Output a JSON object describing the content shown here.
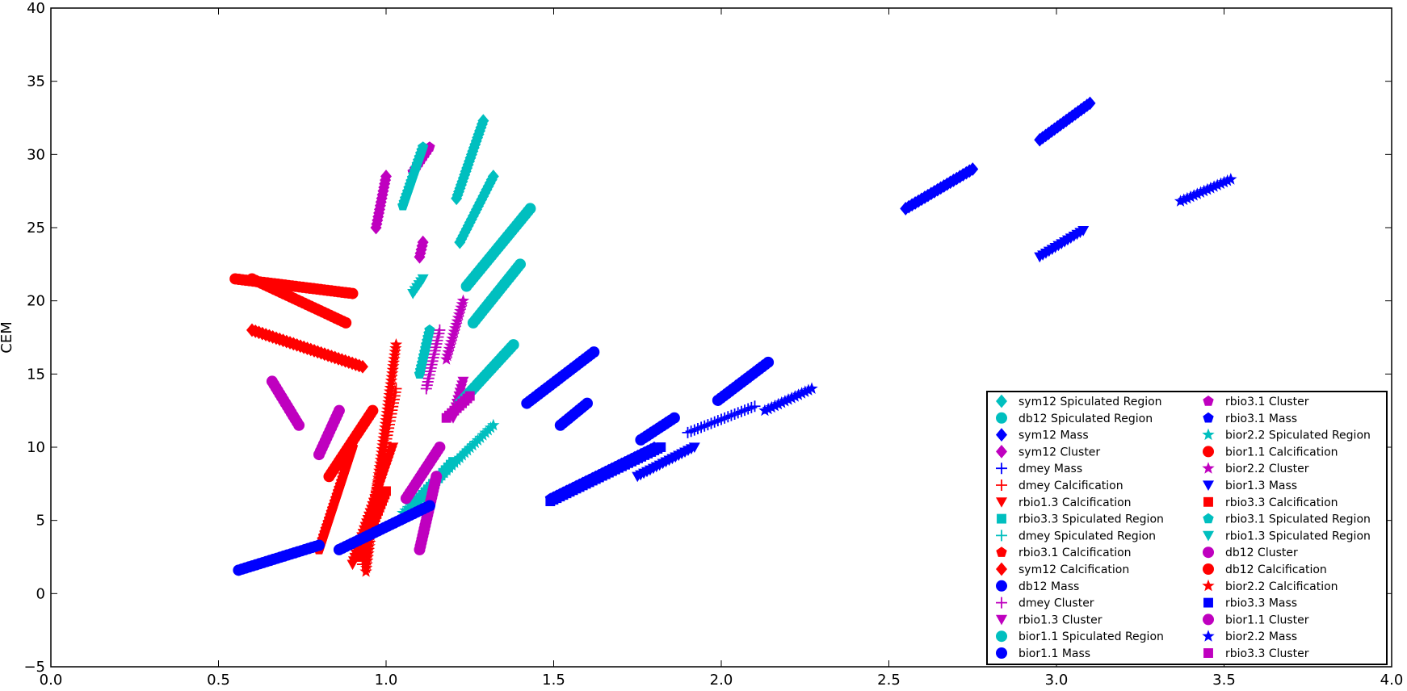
{
  "chart_data": {
    "type": "scatter",
    "title": "",
    "xlabel": "",
    "ylabel": "CEM",
    "xlim": [
      0.0,
      4.0
    ],
    "ylim": [
      -5,
      40
    ],
    "xticks": [
      "0.0",
      "0.5",
      "1.0",
      "1.5",
      "2.0",
      "2.5",
      "3.0",
      "3.5",
      "4.0"
    ],
    "yticks": [
      "−5",
      "0",
      "5",
      "10",
      "15",
      "20",
      "25",
      "30",
      "35",
      "40"
    ],
    "grid": false,
    "legend_position": "lower-right",
    "colors": {
      "cyan": "#00bfbf",
      "blue": "#0000ff",
      "magenta": "#bf00bf",
      "red": "#ff0000"
    },
    "series": [
      {
        "name": "sym12 Spiculated Region",
        "color": "#00bfbf",
        "marker": "diamond",
        "segments": [
          [
            1.21,
            27.0,
            1.29,
            32.3
          ],
          [
            1.22,
            24.0,
            1.32,
            28.5
          ]
        ]
      },
      {
        "name": "db12 Spiculated Region",
        "color": "#00bfbf",
        "marker": "circle",
        "segments": [
          [
            1.24,
            21.0,
            1.43,
            26.3
          ],
          [
            1.26,
            18.5,
            1.4,
            22.5
          ]
        ]
      },
      {
        "name": "sym12 Mass",
        "color": "#0000ff",
        "marker": "diamond",
        "segments": [
          [
            2.55,
            26.3,
            2.75,
            29.0
          ],
          [
            2.95,
            31.0,
            3.1,
            33.5
          ]
        ]
      },
      {
        "name": "sym12 Cluster",
        "color": "#bf00bf",
        "marker": "diamond",
        "segments": [
          [
            0.97,
            25.0,
            1.0,
            28.5
          ],
          [
            1.1,
            23.0,
            1.11,
            24.0
          ]
        ]
      },
      {
        "name": "dmey Mass",
        "color": "#0000ff",
        "marker": "plus",
        "segments": [
          [
            1.9,
            11.0,
            2.1,
            12.8
          ]
        ]
      },
      {
        "name": "dmey Calcification",
        "color": "#ff0000",
        "marker": "plus",
        "segments": [
          [
            0.93,
            2.0,
            1.03,
            14.0
          ]
        ]
      },
      {
        "name": "rbio1.3 Calcification",
        "color": "#ff0000",
        "marker": "triangle-down",
        "segments": [
          [
            0.9,
            2.0,
            1.02,
            10.0
          ]
        ]
      },
      {
        "name": "rbio3.3 Spiculated Region",
        "color": "#00bfbf",
        "marker": "square",
        "segments": [
          [
            1.08,
            6.0,
            1.2,
            9.0
          ]
        ]
      },
      {
        "name": "dmey Spiculated Region",
        "color": "#00bfbf",
        "marker": "plus",
        "segments": [
          [
            1.1,
            6.5,
            1.25,
            10.0
          ]
        ]
      },
      {
        "name": "rbio3.1 Calcification",
        "color": "#ff0000",
        "marker": "pentagon",
        "segments": [
          [
            0.8,
            3.0,
            0.9,
            10.0
          ]
        ]
      },
      {
        "name": "sym12 Calcification",
        "color": "#ff0000",
        "marker": "diamond",
        "segments": [
          [
            0.6,
            18.0,
            0.93,
            15.5
          ]
        ]
      },
      {
        "name": "db12 Mass",
        "color": "#0000ff",
        "marker": "circle",
        "segments": [
          [
            1.42,
            13.0,
            1.62,
            16.5
          ],
          [
            1.52,
            11.5,
            1.6,
            13.0
          ]
        ]
      },
      {
        "name": "dmey Cluster",
        "color": "#bf00bf",
        "marker": "plus",
        "segments": [
          [
            1.12,
            14.0,
            1.16,
            18.0
          ]
        ]
      },
      {
        "name": "rbio1.3 Cluster",
        "color": "#bf00bf",
        "marker": "triangle-down",
        "segments": [
          [
            1.2,
            12.0,
            1.23,
            14.5
          ]
        ]
      },
      {
        "name": "bior1.1 Spiculated Region",
        "color": "#00bfbf",
        "marker": "circle",
        "segments": [
          [
            1.22,
            13.0,
            1.38,
            17.0
          ]
        ]
      },
      {
        "name": "bior1.1 Mass",
        "color": "#0000ff",
        "marker": "circle",
        "segments": [
          [
            1.99,
            13.2,
            2.14,
            15.8
          ],
          [
            1.76,
            10.5,
            1.86,
            12.0
          ]
        ]
      },
      {
        "name": "rbio3.1 Cluster",
        "color": "#bf00bf",
        "marker": "pentagon",
        "segments": [
          [
            1.08,
            28.8,
            1.13,
            30.5
          ]
        ]
      },
      {
        "name": "rbio3.1 Mass",
        "color": "#0000ff",
        "marker": "pentagon",
        "segments": [
          [
            1.49,
            6.5,
            1.8,
            10.0
          ]
        ]
      },
      {
        "name": "bior2.2 Spiculated Region",
        "color": "#00bfbf",
        "marker": "star",
        "segments": [
          [
            1.05,
            5.5,
            1.32,
            11.5
          ]
        ]
      },
      {
        "name": "bior1.1 Calcification",
        "color": "#ff0000",
        "marker": "circle",
        "segments": [
          [
            0.55,
            21.5,
            0.9,
            20.5
          ],
          [
            0.83,
            8.0,
            0.96,
            12.5
          ]
        ]
      },
      {
        "name": "bior2.2 Cluster",
        "color": "#bf00bf",
        "marker": "star",
        "segments": [
          [
            1.18,
            16.0,
            1.23,
            20.0
          ]
        ]
      },
      {
        "name": "bior1.3 Mass",
        "color": "#0000ff",
        "marker": "triangle-down",
        "segments": [
          [
            1.75,
            8.0,
            1.92,
            10.0
          ],
          [
            2.95,
            23.0,
            3.08,
            24.8
          ]
        ]
      },
      {
        "name": "rbio3.3 Calcification",
        "color": "#ff0000",
        "marker": "square",
        "segments": [
          [
            0.92,
            2.5,
            1.0,
            7.0
          ]
        ]
      },
      {
        "name": "rbio3.1 Spiculated Region",
        "color": "#00bfbf",
        "marker": "pentagon",
        "segments": [
          [
            1.05,
            26.5,
            1.11,
            30.5
          ],
          [
            1.1,
            15.0,
            1.13,
            18.0
          ]
        ]
      },
      {
        "name": "rbio1.3 Spiculated Region",
        "color": "#00bfbf",
        "marker": "triangle-down",
        "segments": [
          [
            1.08,
            20.5,
            1.11,
            21.5
          ]
        ]
      },
      {
        "name": "db12 Cluster",
        "color": "#bf00bf",
        "marker": "circle",
        "segments": [
          [
            0.66,
            14.5,
            0.74,
            11.5
          ],
          [
            0.8,
            9.5,
            0.86,
            12.5
          ]
        ]
      },
      {
        "name": "db12 Calcification",
        "color": "#ff0000",
        "marker": "circle",
        "segments": [
          [
            0.6,
            21.5,
            0.88,
            18.5
          ]
        ]
      },
      {
        "name": "bior2.2 Calcification",
        "color": "#ff0000",
        "marker": "star",
        "segments": [
          [
            0.94,
            1.5,
            1.03,
            17.0
          ]
        ]
      },
      {
        "name": "rbio3.3 Mass",
        "color": "#0000ff",
        "marker": "square",
        "segments": [
          [
            1.49,
            6.3,
            1.82,
            10.0
          ]
        ]
      },
      {
        "name": "bior1.1 Cluster",
        "color": "#bf00bf",
        "marker": "circle",
        "segments": [
          [
            1.06,
            6.5,
            1.16,
            10.0
          ],
          [
            1.1,
            3.0,
            1.15,
            8.0
          ]
        ]
      },
      {
        "name": "bior2.2 Mass",
        "color": "#0000ff",
        "marker": "star",
        "segments": [
          [
            3.37,
            26.8,
            3.52,
            28.3
          ],
          [
            2.13,
            12.5,
            2.27,
            14.0
          ]
        ]
      },
      {
        "name": "rbio3.3 Cluster",
        "color": "#bf00bf",
        "marker": "square",
        "segments": [
          [
            1.18,
            12.0,
            1.25,
            13.5
          ]
        ]
      },
      {
        "name": "",
        "color": "#0000ff",
        "marker": "circle",
        "segments": [
          [
            0.56,
            1.6,
            0.8,
            3.3
          ],
          [
            0.86,
            3.0,
            1.13,
            6.0
          ]
        ]
      }
    ]
  }
}
